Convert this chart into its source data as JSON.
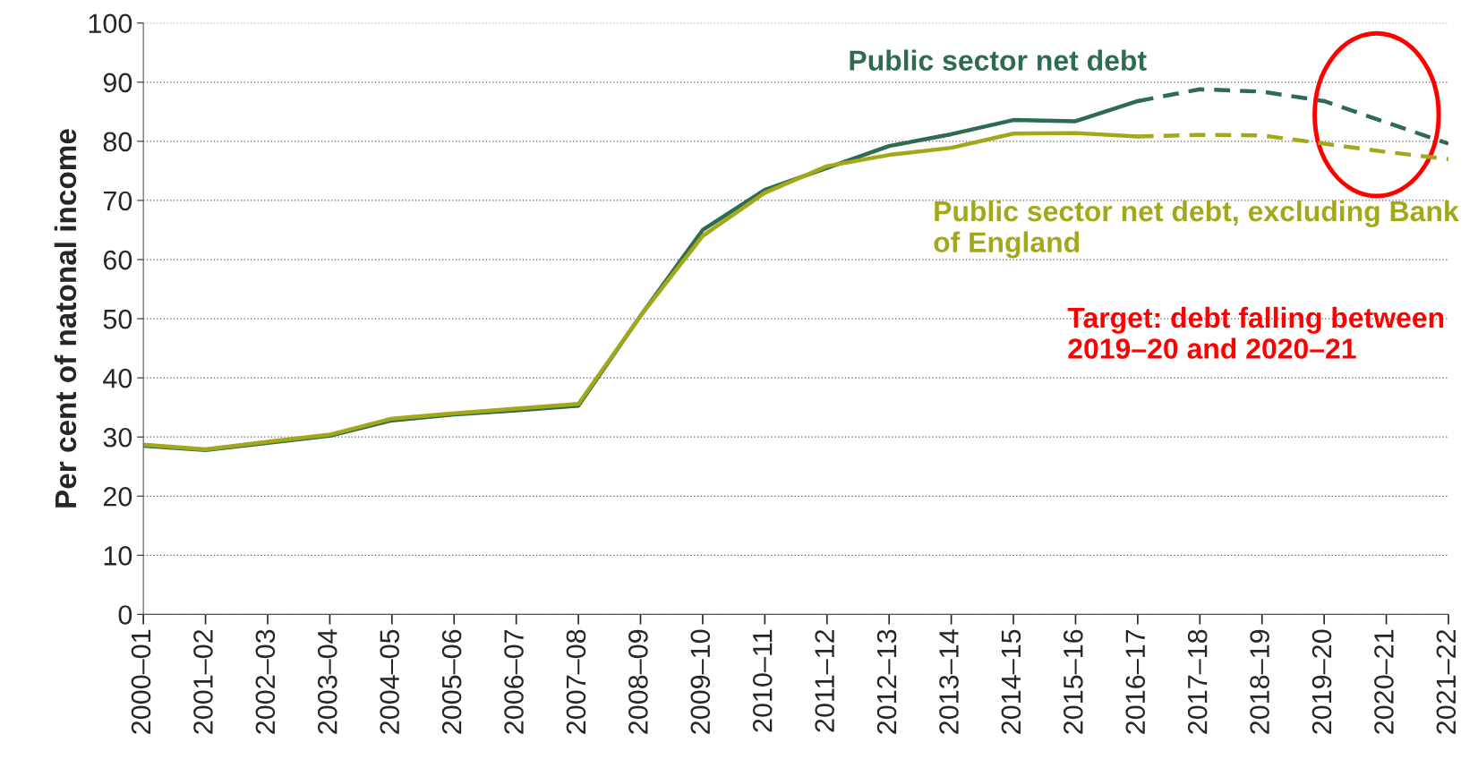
{
  "chart_data": {
    "type": "line",
    "ylabel": "Per cent of natonal income",
    "categories": [
      "2000–01",
      "2001–02",
      "2002–03",
      "2003–04",
      "2004–05",
      "2005–06",
      "2006–07",
      "2007–08",
      "2008–09",
      "2009–10",
      "2010–11",
      "2011–12",
      "2012–13",
      "2013–14",
      "2014–15",
      "2015–16",
      "2016–17",
      "2017–18",
      "2018–19",
      "2019–20",
      "2020–21",
      "2021–22"
    ],
    "series": [
      {
        "name": "Public sector net debt",
        "color": "#2e6b4f",
        "line_style": "solid",
        "values": [
          28.5,
          27.8,
          29.0,
          30.2,
          32.8,
          33.8,
          34.5,
          35.3,
          50.5,
          65.0,
          71.8,
          75.5,
          79.2,
          81.2,
          83.6,
          83.4,
          86.8,
          null,
          null,
          null,
          null,
          null
        ]
      },
      {
        "color": "#2e6b4f",
        "line_style": "dashed",
        "values": [
          null,
          null,
          null,
          null,
          null,
          null,
          null,
          null,
          null,
          null,
          null,
          null,
          null,
          null,
          null,
          null,
          86.8,
          88.8,
          88.4,
          86.8,
          83.2,
          79.6
        ]
      },
      {
        "name": "Public sector net debt, excluding Bank of England",
        "color": "#a3a81a",
        "line_style": "solid",
        "values": [
          28.7,
          27.9,
          29.2,
          30.4,
          33.1,
          34.0,
          34.8,
          35.6,
          50.5,
          64.0,
          71.3,
          75.8,
          77.7,
          78.9,
          81.3,
          81.4,
          80.8,
          null,
          null,
          null,
          null,
          null
        ]
      },
      {
        "color": "#a3a81a",
        "line_style": "dashed",
        "values": [
          null,
          null,
          null,
          null,
          null,
          null,
          null,
          null,
          null,
          null,
          null,
          null,
          null,
          null,
          null,
          null,
          80.8,
          81.1,
          81.0,
          79.6,
          78.2,
          77.0
        ]
      }
    ],
    "ylim": [
      0,
      100
    ],
    "yticks": [
      0,
      10,
      20,
      30,
      40,
      50,
      60,
      70,
      80,
      90,
      100
    ],
    "grid": "y",
    "legend": false,
    "annotations": [
      "Target: debt falling between 2019–20 and 2020–21"
    ]
  }
}
